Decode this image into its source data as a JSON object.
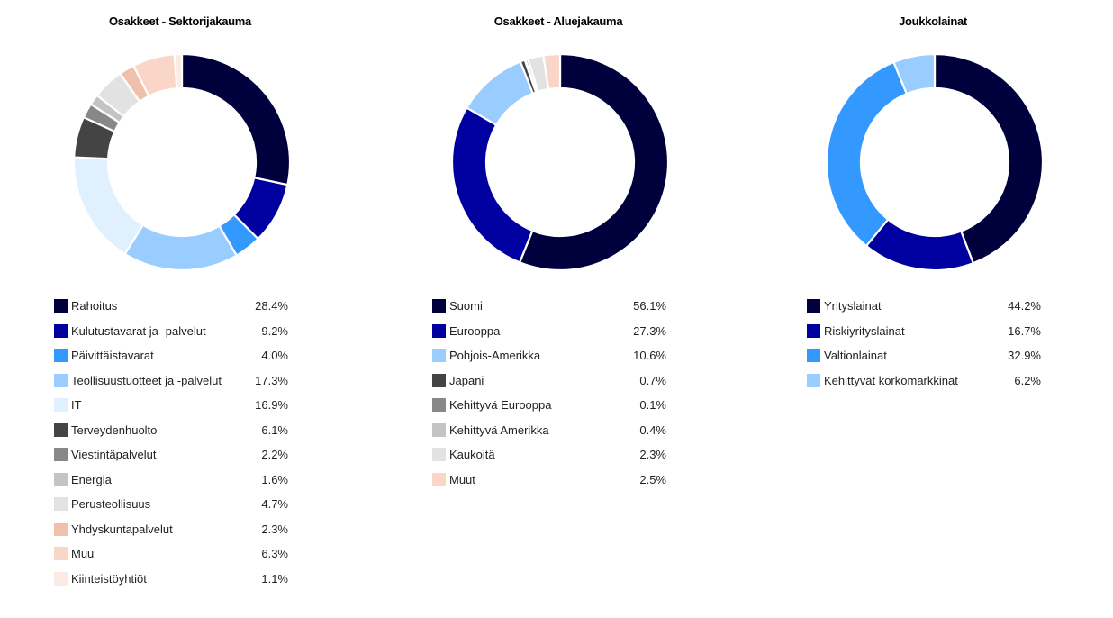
{
  "chart_data": [
    {
      "type": "pie",
      "variant": "donut",
      "title": "Osakkeet - Sektorijakauma",
      "legend_position": "bottom",
      "series": [
        {
          "label": "Rahoitus",
          "value": 28.4,
          "display": "28.4%",
          "color": "#00003c"
        },
        {
          "label": "Kulutustavarat ja -palvelut",
          "value": 9.2,
          "display": "9.2%",
          "color": "#0000a0"
        },
        {
          "label": "Päivittäistavarat",
          "value": 4.0,
          "display": "4.0%",
          "color": "#3399ff"
        },
        {
          "label": "Teollisuustuotteet ja -palvelut",
          "value": 17.3,
          "display": "17.3%",
          "color": "#99ccff"
        },
        {
          "label": "IT",
          "value": 16.9,
          "display": "16.9%",
          "color": "#e0f0ff"
        },
        {
          "label": "Terveydenhuolto",
          "value": 6.1,
          "display": "6.1%",
          "color": "#444444"
        },
        {
          "label": "Viestintäpalvelut",
          "value": 2.2,
          "display": "2.2%",
          "color": "#888888"
        },
        {
          "label": "Energia",
          "value": 1.6,
          "display": "1.6%",
          "color": "#c4c4c4"
        },
        {
          "label": "Perusteollisuus",
          "value": 4.7,
          "display": "4.7%",
          "color": "#e2e2e2"
        },
        {
          "label": "Yhdyskuntapalvelut",
          "value": 2.3,
          "display": "2.3%",
          "color": "#f0c0aa"
        },
        {
          "label": "Muu",
          "value": 6.3,
          "display": "6.3%",
          "color": "#fad6c8"
        },
        {
          "label": "Kiinteistöyhtiöt",
          "value": 1.1,
          "display": "1.1%",
          "color": "#fcebe4"
        }
      ]
    },
    {
      "type": "pie",
      "variant": "donut",
      "title": "Osakkeet - Aluejakauma",
      "legend_position": "bottom",
      "series": [
        {
          "label": "Suomi",
          "value": 56.1,
          "display": "56.1%",
          "color": "#00003c"
        },
        {
          "label": "Eurooppa",
          "value": 27.3,
          "display": "27.3%",
          "color": "#0000a0"
        },
        {
          "label": "Pohjois-Amerikka",
          "value": 10.6,
          "display": "10.6%",
          "color": "#99ccff"
        },
        {
          "label": "Japani",
          "value": 0.7,
          "display": "0.7%",
          "color": "#444444"
        },
        {
          "label": "Kehittyvä Eurooppa",
          "value": 0.1,
          "display": "0.1%",
          "color": "#888888"
        },
        {
          "label": "Kehittyvä Amerikka",
          "value": 0.4,
          "display": "0.4%",
          "color": "#c4c4c4"
        },
        {
          "label": "Kaukoitä",
          "value": 2.3,
          "display": "2.3%",
          "color": "#e2e2e2"
        },
        {
          "label": "Muut",
          "value": 2.5,
          "display": "2.5%",
          "color": "#fad6c8"
        }
      ]
    },
    {
      "type": "pie",
      "variant": "donut",
      "title": "Joukkolainat",
      "legend_position": "bottom",
      "series": [
        {
          "label": "Yrityslainat",
          "value": 44.2,
          "display": "44.2%",
          "color": "#00003c"
        },
        {
          "label": "Riskiyrityslainat",
          "value": 16.7,
          "display": "16.7%",
          "color": "#0000a0"
        },
        {
          "label": "Valtionlainat",
          "value": 32.9,
          "display": "32.9%",
          "color": "#3399ff"
        },
        {
          "label": "Kehittyvät korkomarkkinat",
          "value": 6.2,
          "display": "6.2%",
          "color": "#99ccff"
        }
      ]
    }
  ]
}
